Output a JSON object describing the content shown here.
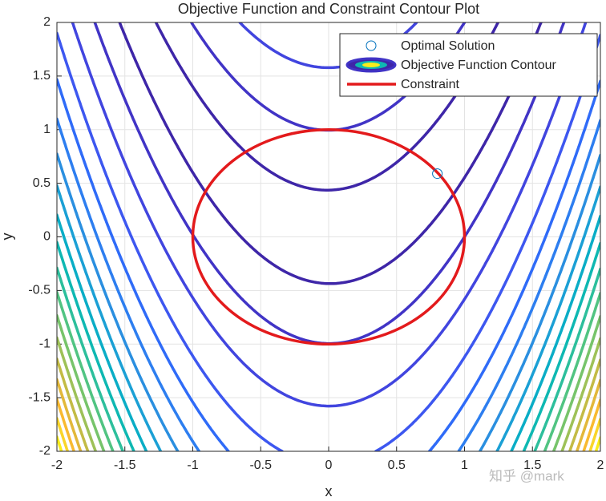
{
  "chart_data": {
    "type": "contour",
    "title": "Objective Function and Constraint Contour Plot",
    "x_label": "x",
    "y_label": "y",
    "xlim": [
      -2,
      2
    ],
    "ylim": [
      -2,
      2
    ],
    "xticks": [
      -2,
      -1.5,
      -1,
      -0.5,
      0,
      0.5,
      1,
      1.5,
      2
    ],
    "yticks": [
      -2,
      -1.5,
      -1,
      -0.5,
      0,
      0.5,
      1,
      1.5,
      2
    ],
    "grid": true,
    "legend": "top right",
    "optimal": {
      "name": "Optimal Solution",
      "color": "#0072bd",
      "x": 0.8,
      "y": 0.59
    },
    "contour": {
      "name": "Objective Function Contour",
      "levels": [
        20,
        100,
        250,
        450,
        650,
        850,
        1050,
        1250,
        1450,
        1650,
        1850,
        2050,
        2250,
        2450,
        2650,
        2850,
        3050,
        3250,
        3450
      ],
      "colors": [
        "#3e26a8",
        "#4134c6",
        "#4145df",
        "#3d57f0",
        "#2f6bf8",
        "#2d7ef0",
        "#2a8fe0",
        "#1ba0d5",
        "#0aadc6",
        "#0eb8b2",
        "#2dbf9c",
        "#51c482",
        "#77c46b",
        "#9ec158",
        "#c3bb45",
        "#e2b83a",
        "#f8ba30",
        "#f9d52a",
        "#f9ed1b"
      ]
    },
    "constraint": {
      "name": "Constraint",
      "color": "#e31a1c",
      "center": [
        0,
        0
      ],
      "radius": 1
    },
    "watermark": "知乎 @mark"
  }
}
